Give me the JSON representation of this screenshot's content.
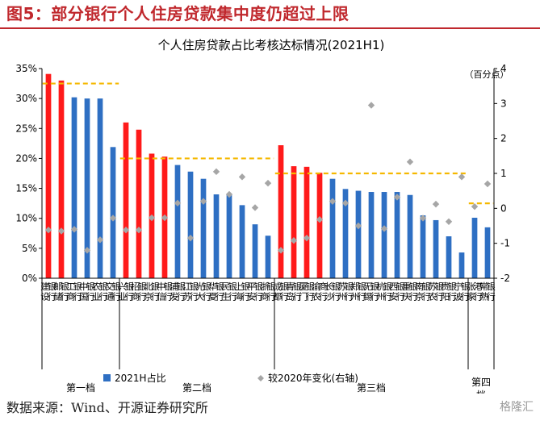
{
  "figure_title": "图5：部分银行个人住房贷款集中度仍超过上限",
  "source": "数据来源：Wind、开源证券研究所",
  "watermark": "格隆汇",
  "chart_data": {
    "type": "bar",
    "title": "个人住房贷款占比考核达标情况(2021H1)",
    "right_axis_unit": "（百分点）",
    "ylim_left": [
      0,
      35
    ],
    "left_ticks": [
      "0%",
      "5%",
      "10%",
      "15%",
      "20%",
      "25%",
      "30%",
      "35%"
    ],
    "ylim_right": [
      -2,
      4
    ],
    "right_ticks": [
      "-2",
      "-1",
      "0",
      "1",
      "2",
      "3",
      "4"
    ],
    "categories": [
      "建设银行",
      "邮储银行",
      "工商银行",
      "中国银行",
      "农业银行",
      "交通银行",
      "兴业银行",
      "招商银行",
      "北京银行",
      "中信银行",
      "浦发银行",
      "江苏银行",
      "光大银行",
      "华夏银行",
      "民生银行",
      "上海银行",
      "平安银行",
      "浙商银行",
      "成都银行",
      "青岛银行",
      "厦门银行",
      "渝农商行",
      "长沙银行",
      "苏州银行",
      "郑州银行",
      "无锡银行",
      "杭州银行",
      "西安银行",
      "重庆银行",
      "南京银行",
      "苏农银行",
      "贵阳银行",
      "宁波银行",
      "张家港行",
      "常熟银行"
    ],
    "series": [
      {
        "name": "2021H占比",
        "kind": "bar",
        "color": "#2e6fc3",
        "values": [
          34.1,
          33.0,
          30.2,
          30.0,
          30.0,
          21.9,
          26.0,
          24.8,
          20.8,
          20.3,
          18.9,
          17.8,
          16.6,
          14.0,
          14.0,
          12.2,
          9.0,
          7.1,
          22.2,
          18.7,
          18.6,
          17.6,
          16.6,
          14.9,
          14.6,
          14.4,
          14.4,
          14.4,
          13.9,
          10.5,
          9.7,
          7.0,
          4.3,
          10.1,
          8.5
        ]
      },
      {
        "name": "较2020年变化(右轴)",
        "kind": "scatter",
        "color": "#a6a6a6",
        "values": [
          -0.62,
          -0.65,
          -0.6,
          -1.2,
          -0.9,
          -0.28,
          -0.62,
          -0.62,
          -0.27,
          -0.27,
          0.15,
          -0.85,
          0.2,
          1.05,
          0.4,
          0.9,
          0.02,
          0.72,
          -1.2,
          -0.92,
          -0.85,
          -0.32,
          0.2,
          0.15,
          -0.5,
          2.95,
          -0.58,
          0.32,
          1.33,
          -0.28,
          0.12,
          -0.38,
          0.9,
          0.05,
          0.7
        ]
      }
    ],
    "thresholds": [
      {
        "tier": "第一档",
        "value": 32.5,
        "from": 0,
        "to": 5
      },
      {
        "tier": "第二档",
        "value": 20.0,
        "from": 6,
        "to": 17
      },
      {
        "tier": "第三档",
        "value": 17.5,
        "from": 18,
        "to": 32
      },
      {
        "tier": "第四档",
        "value": 12.5,
        "from": 33,
        "to": 34
      }
    ],
    "threshold_color": "#f5b800",
    "over_limit_color": "#ff1a1a",
    "tiers": [
      {
        "label": "第一档",
        "from": 0,
        "to": 5
      },
      {
        "label": "第二档",
        "from": 6,
        "to": 17
      },
      {
        "label": "第三档",
        "from": 18,
        "to": 32
      },
      {
        "label": "第四档",
        "from": 33,
        "to": 34
      }
    ],
    "legend_position": "bottom"
  }
}
